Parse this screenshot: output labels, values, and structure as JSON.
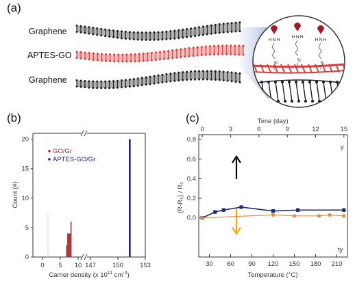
{
  "panel_a": {
    "label": "(a)",
    "layers": [
      "Graphene",
      "APTES-GO",
      "Graphene"
    ],
    "molecule": {
      "atom1": "N",
      "atom2": "H",
      "atom3": "Si"
    },
    "colors": {
      "graphene": "#1c1c1c",
      "aptes_go": "#d93a3a",
      "atom_head": "#a51522"
    }
  },
  "panel_b": {
    "label": "(b)"
  },
  "panel_c": {
    "label": "(c)"
  },
  "chart_data": [
    {
      "type": "bar",
      "xlabel_parts": [
        "Carrier density (x 10",
        "11",
        " cm",
        "-2",
        ")"
      ],
      "ylabel": "Count (#)",
      "x_ticks_left": [
        "0",
        "5",
        "10"
      ],
      "x_ticks_right": [
        "147",
        "150",
        "153"
      ],
      "y_ticks": [
        "0",
        "5",
        "10",
        "15",
        "20"
      ],
      "ylim": [
        0,
        21
      ],
      "series": [
        {
          "name": "GO/Gr",
          "color": "#a52a2a",
          "bars": [
            {
              "x": 6.8,
              "value": 2
            },
            {
              "x": 7.1,
              "value": 4
            },
            {
              "x": 7.4,
              "value": 4
            },
            {
              "x": 7.7,
              "value": 4
            },
            {
              "x": 8.0,
              "value": 6
            }
          ]
        },
        {
          "name": "APTES-GO/Gr",
          "color": "#1b1f7a",
          "bars": [
            {
              "x": 151.3,
              "value": 20
            }
          ]
        }
      ]
    },
    {
      "type": "line",
      "xlabel": "Temperature (°C)",
      "ylabel": "(R-R₀) / R₀",
      "x_ticks": [
        "30",
        "60",
        "90",
        "120",
        "150",
        "180",
        "210"
      ],
      "xlim": [
        15,
        225
      ],
      "top_axis_label": "Time (day)",
      "top_ticks": [
        "0",
        "3",
        "6",
        "9",
        "12",
        "15"
      ],
      "y_ticks": [
        "0.0",
        "0.2",
        "0.4",
        "0.6",
        "0.8"
      ],
      "ylim": [
        -0.4,
        0.85
      ],
      "corner_texts": [
        "y",
        "ty"
      ],
      "arrows": {
        "up": "#000000",
        "down": "#f0a818"
      },
      "series": [
        {
          "name": "",
          "color": "#1b2a7a",
          "marker": "square",
          "x": [
            20,
            38,
            50,
            75,
            120,
            155,
            220
          ],
          "y": [
            0.0,
            0.06,
            0.08,
            0.11,
            0.07,
            0.08,
            0.08
          ]
        },
        {
          "name": "",
          "color": "#e8883a",
          "marker": "circle",
          "x": [
            20,
            120,
            150,
            185,
            200,
            220
          ],
          "y": [
            0.0,
            0.03,
            0.02,
            0.02,
            0.03,
            0.02
          ]
        }
      ]
    }
  ]
}
